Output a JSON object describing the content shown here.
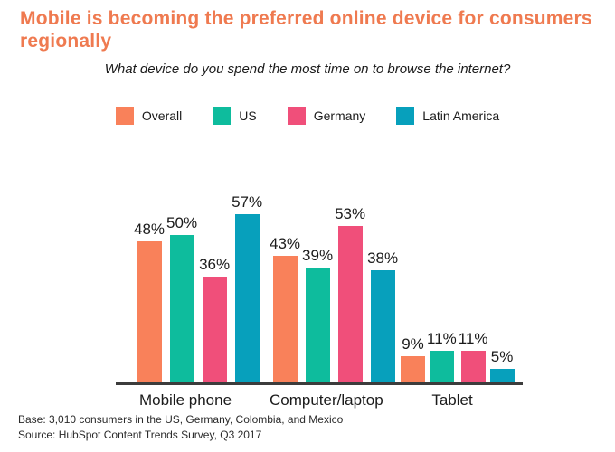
{
  "header": {
    "title": "Mobile is becoming the preferred online device for consumers regionally",
    "subtitle": "What device do you spend the most time on to browse the internet?"
  },
  "footer": {
    "base": "Base: 3,010 consumers in the US, Germany, Colombia, and Mexico",
    "source": "Source: HubSpot Content Trends Survey, Q3 2017"
  },
  "colors": {
    "title_accent": "#EF7A50",
    "axis": "#3C3C3C",
    "text": "#1B1B1B"
  },
  "chart_data": {
    "type": "bar",
    "title": "Mobile is becoming the preferred online device for consumers regionally",
    "subtitle": "What device do you spend the most time on to browse the internet?",
    "categories": [
      "Mobile phone",
      "Computer/laptop",
      "Tablet"
    ],
    "series": [
      {
        "name": "Overall",
        "color": "#F9815A",
        "values": [
          48,
          43,
          9
        ]
      },
      {
        "name": "US",
        "color": "#0EBC9D",
        "values": [
          50,
          39,
          11
        ]
      },
      {
        "name": "Germany",
        "color": "#F04F7A",
        "values": [
          36,
          53,
          11
        ]
      },
      {
        "name": "Latin America",
        "color": "#07A0BC",
        "values": [
          57,
          38,
          5
        ]
      }
    ],
    "value_suffix": "%",
    "ylim": [
      0,
      60
    ],
    "grid": false,
    "legend_position": "top",
    "data_labels": true
  }
}
